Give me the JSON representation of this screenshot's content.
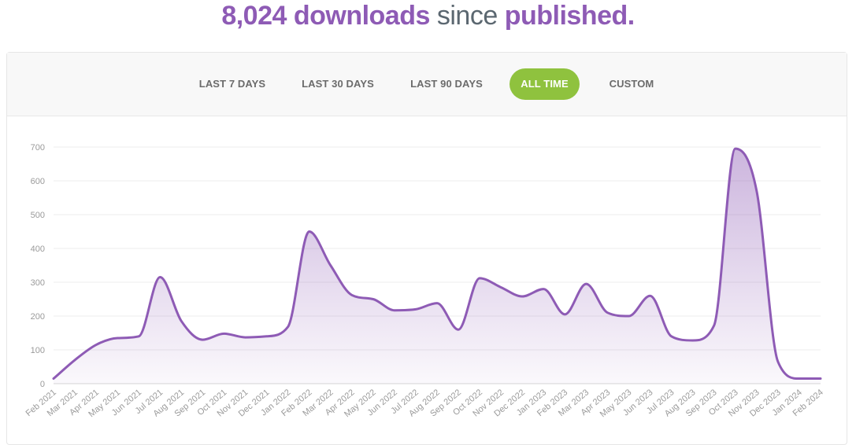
{
  "headline": {
    "count": "8,024 downloads",
    "since": "since",
    "published": "published."
  },
  "ranges": [
    {
      "label": "LAST 7 DAYS",
      "active": false
    },
    {
      "label": "LAST 30 DAYS",
      "active": false
    },
    {
      "label": "LAST 90 DAYS",
      "active": false
    },
    {
      "label": "ALL TIME",
      "active": true
    },
    {
      "label": "CUSTOM",
      "active": false
    }
  ],
  "colors": {
    "accent": "#8e5bb5",
    "active_button": "#8fc23e",
    "line": "#8e5bb5"
  },
  "chart_data": {
    "type": "area",
    "title": "",
    "xlabel": "",
    "ylabel": "",
    "ylim": [
      0,
      700
    ],
    "yticks": [
      0,
      100,
      200,
      300,
      400,
      500,
      600,
      700
    ],
    "grid": true,
    "legend": "none",
    "categories": [
      "Feb 2021",
      "Mar 2021",
      "Apr 2021",
      "May 2021",
      "Jun 2021",
      "Jul 2021",
      "Aug 2021",
      "Sep 2021",
      "Oct 2021",
      "Nov 2021",
      "Dec 2021",
      "Jan 2022",
      "Feb 2022",
      "Mar 2022",
      "Apr 2022",
      "May 2022",
      "Jun 2022",
      "Jul 2022",
      "Aug 2022",
      "Sep 2022",
      "Oct 2022",
      "Nov 2022",
      "Dec 2022",
      "Jan 2023",
      "Feb 2023",
      "Mar 2023",
      "Apr 2023",
      "May 2023",
      "Jun 2023",
      "Jul 2023",
      "Aug 2023",
      "Sep 2023",
      "Oct 2023",
      "Nov 2023",
      "Dec 2023",
      "Jan 2024",
      "Feb 2024"
    ],
    "series": [
      {
        "values": [
          15,
          70,
          115,
          135,
          140,
          315,
          185,
          130,
          148,
          137,
          140,
          168,
          450,
          350,
          262,
          250,
          217,
          220,
          238,
          160,
          312,
          285,
          258,
          280,
          205,
          295,
          210,
          200,
          260,
          140,
          128,
          172,
          695,
          570,
          65,
          15,
          15
        ]
      }
    ]
  }
}
